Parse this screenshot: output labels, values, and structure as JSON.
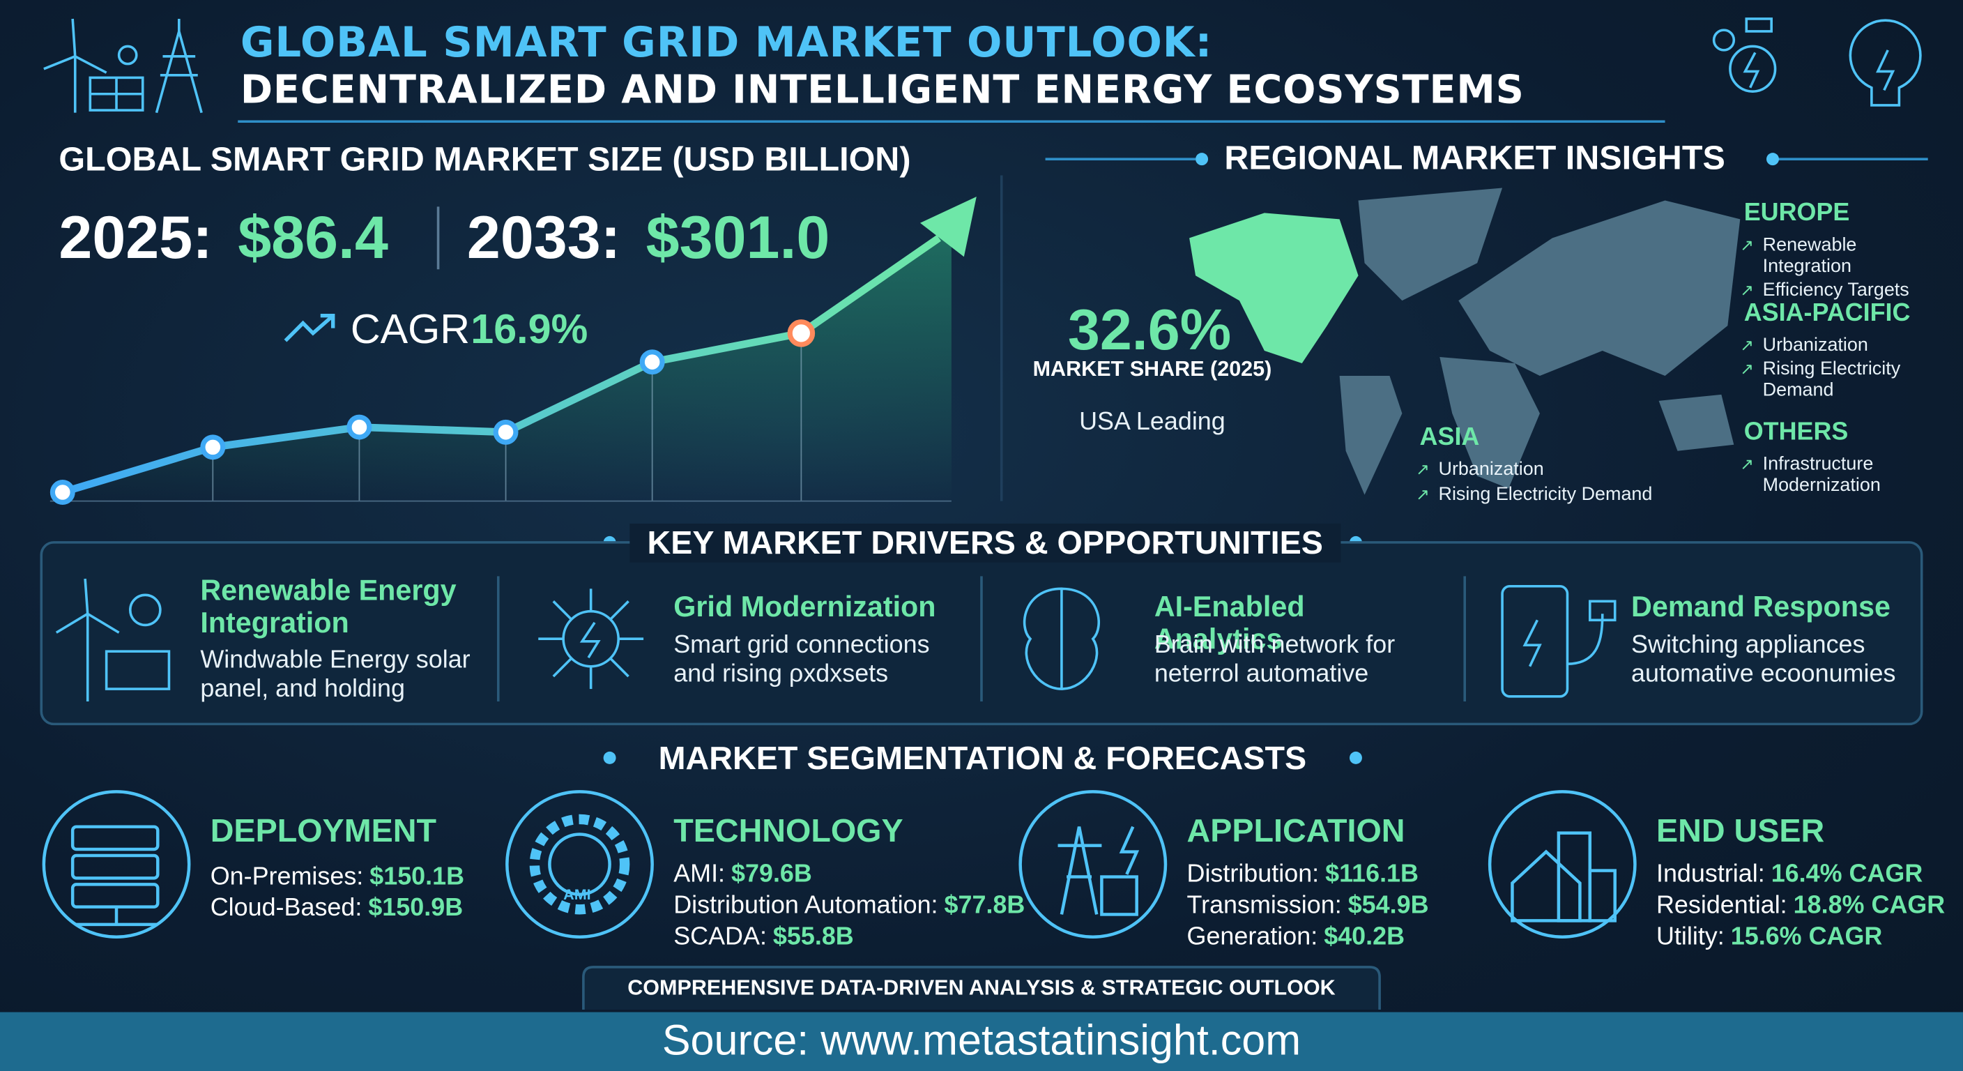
{
  "header": {
    "title_line1": "GLOBAL SMART GRID MARKET OUTLOOK:",
    "title_line2": "DECENTRALIZED AND INTELLIGENT ENERGY ECOSYSTEMS"
  },
  "market_size": {
    "title": "GLOBAL SMART GRID MARKET SIZE (USD BILLION)",
    "year_a": "2025:",
    "value_a": "$86.4",
    "year_b": "2033:",
    "value_b": "$301.0",
    "cagr_label": "CAGR",
    "cagr_value": "16.9%"
  },
  "regional": {
    "title": "REGIONAL MARKET INSIGHTS",
    "share_value": "32.6%",
    "share_label": "MARKET SHARE (2025)",
    "share_note": "USA Leading",
    "regions": [
      {
        "name": "EUROPE",
        "items": [
          "Renewable Integration",
          "Efficiency Targets"
        ]
      },
      {
        "name": "ASIA-PACIFIC",
        "items": [
          "Urbanization",
          "Rising Electricity Demand"
        ]
      },
      {
        "name": "OTHERS",
        "items": [
          "Infrastructure Modernization"
        ]
      },
      {
        "name": "ASIA",
        "items": [
          "Urbanization",
          "Rising Electricity Demand"
        ]
      }
    ]
  },
  "drivers": {
    "title": "KEY MARKET DRIVERS & OPPORTUNITIES",
    "items": [
      {
        "title": "Renewable Energy Integration",
        "text": "Windwable Energy solar panel, and holding"
      },
      {
        "title": "Grid Modernization",
        "text": "Smart grid connections and rising ρxdxsets"
      },
      {
        "title": "AI-Enabled Analytics",
        "text": "Brain with network for neterrol automative"
      },
      {
        "title": "Demand Response",
        "text": "Switching appliances automative ecoonumies"
      }
    ]
  },
  "segmentation": {
    "title": "MARKET SEGMENTATION & FORECASTS",
    "icon_label": "AMI",
    "segments": [
      {
        "title": "DEPLOYMENT",
        "rows": [
          [
            "On-Premises:",
            "$150.1B"
          ],
          [
            "Cloud-Based:",
            "$150.9B"
          ]
        ]
      },
      {
        "title": "TECHNOLOGY",
        "rows": [
          [
            "AMI:",
            "$79.6B"
          ],
          [
            "Distribution Automation:",
            "$77.8B"
          ],
          [
            "SCADA:",
            "$55.8B"
          ]
        ]
      },
      {
        "title": "APPLICATION",
        "rows": [
          [
            "Distribution:",
            "$116.1B"
          ],
          [
            "Transmission:",
            "$54.9B"
          ],
          [
            "Generation:",
            "$40.2B"
          ]
        ]
      },
      {
        "title": "END USER",
        "rows": [
          [
            "Industrial:",
            "16.4% CAGR"
          ],
          [
            "Residential:",
            "18.8% CAGR"
          ],
          [
            "Utility:",
            "15.6% CAGR"
          ]
        ]
      }
    ]
  },
  "footer": {
    "banner": "COMPREHENSIVE DATA-DRIVEN ANALYSIS & STRATEGIC OUTLOOK",
    "source": "Source: www.metastatinsight.com"
  }
}
